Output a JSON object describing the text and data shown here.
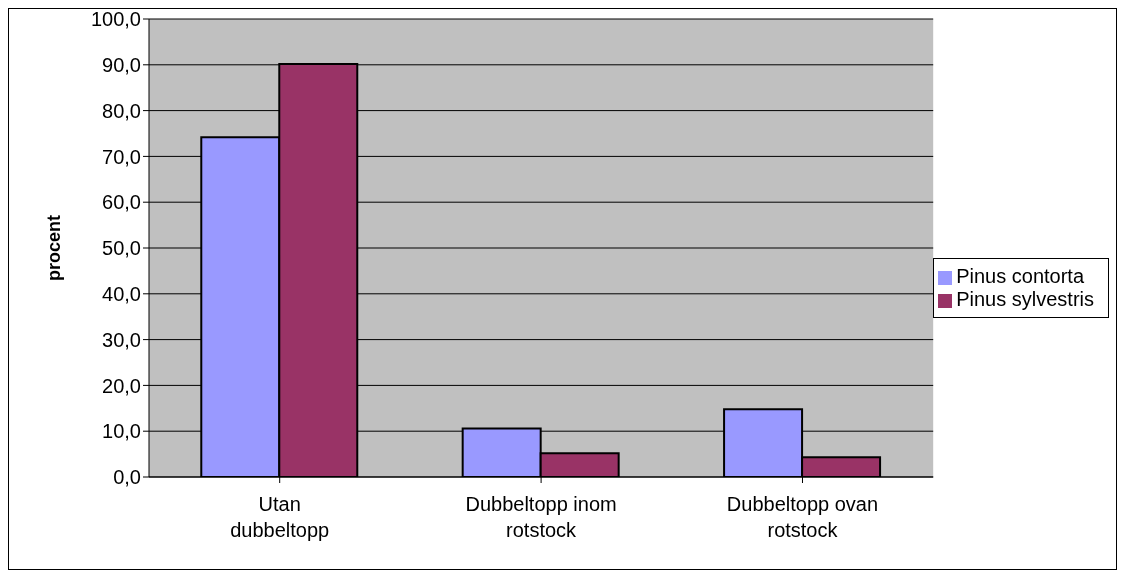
{
  "chart_data": {
    "type": "bar",
    "ylabel": "procent",
    "categories": [
      "Utan dubbeltopp",
      "Dubbeltopp inom rotstock",
      "Dubbeltopp ovan rotstock"
    ],
    "series": [
      {
        "name": "Pinus contorta",
        "color": "#9999ff",
        "values": [
          74.2,
          10.6,
          14.8
        ]
      },
      {
        "name": "Pinus sylvestris",
        "color": "#993366",
        "values": [
          90.2,
          5.2,
          4.3
        ]
      }
    ],
    "ylim": [
      0,
      100
    ],
    "yticks": [
      {
        "value": 0,
        "label": "0,0"
      },
      {
        "value": 10,
        "label": "10,0"
      },
      {
        "value": 20,
        "label": "20,0"
      },
      {
        "value": 30,
        "label": "30,0"
      },
      {
        "value": 40,
        "label": "40,0"
      },
      {
        "value": 50,
        "label": "50,0"
      },
      {
        "value": 60,
        "label": "60,0"
      },
      {
        "value": 70,
        "label": "70,0"
      },
      {
        "value": 80,
        "label": "80,0"
      },
      {
        "value": 90,
        "label": "90,0"
      },
      {
        "value": 100,
        "label": "100,0"
      }
    ],
    "grid": "y",
    "legend": "right"
  }
}
